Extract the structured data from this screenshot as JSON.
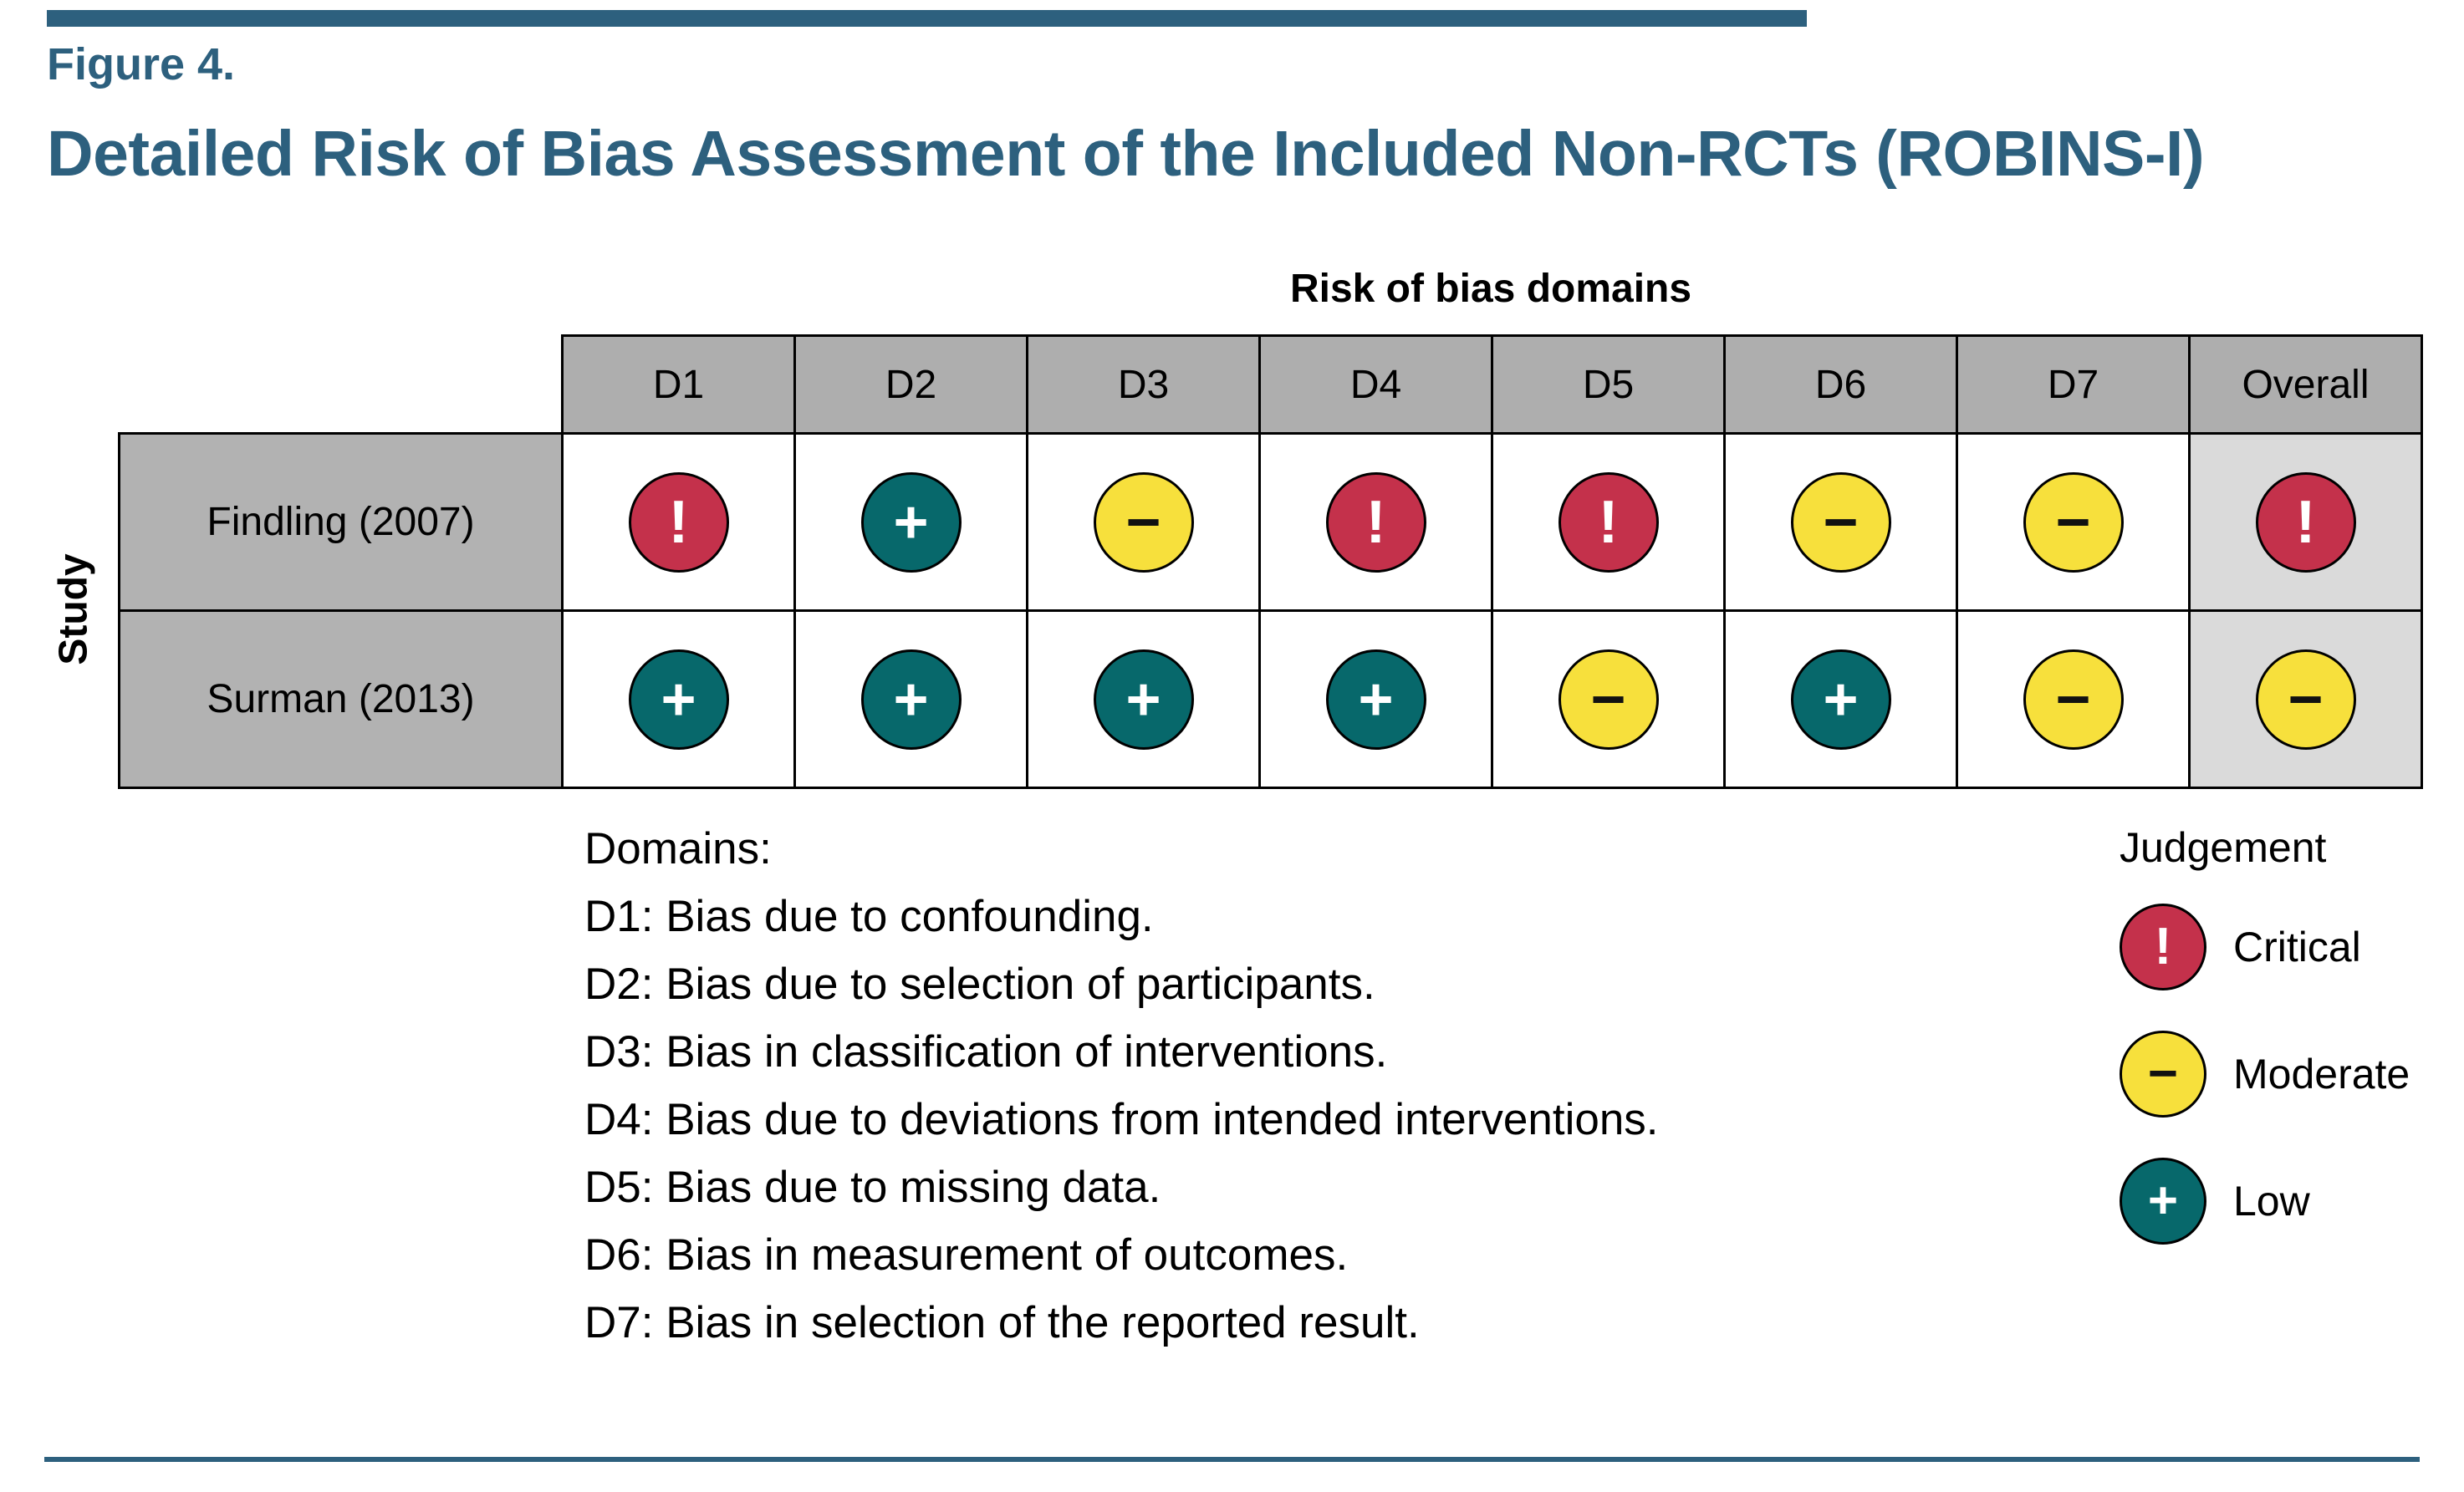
{
  "figure": {
    "label": "Figure 4.",
    "title": "Detailed Risk of Bias Assessment of the Included Non-RCTs (ROBINS-I)"
  },
  "chart_data": {
    "type": "heatmap",
    "title": "Risk of bias domains",
    "row_axis_label": "Study",
    "columns": [
      "D1",
      "D2",
      "D3",
      "D4",
      "D5",
      "D6",
      "D7",
      "Overall"
    ],
    "rows": [
      {
        "study": "Findling (2007)",
        "judgements": [
          "critical",
          "low",
          "moderate",
          "critical",
          "critical",
          "moderate",
          "moderate",
          "critical"
        ]
      },
      {
        "study": "Surman (2013)",
        "judgements": [
          "low",
          "low",
          "low",
          "low",
          "moderate",
          "low",
          "moderate",
          "moderate"
        ]
      }
    ],
    "judgement_styles": {
      "critical": {
        "symbol": "!",
        "fill": "#C4314B",
        "text": "#FFFFFF"
      },
      "moderate": {
        "symbol": "−",
        "fill": "#F7E03C",
        "text": "#111111"
      },
      "low": {
        "symbol": "+",
        "fill": "#07686B",
        "text": "#FFFFFF"
      }
    },
    "legend": {
      "title": "Judgement",
      "entries": [
        {
          "judgement": "critical",
          "label": "Critical"
        },
        {
          "judgement": "moderate",
          "label": "Moderate"
        },
        {
          "judgement": "low",
          "label": "Low"
        }
      ]
    }
  },
  "domains_note": {
    "heading": "Domains:",
    "items": [
      "D1: Bias due to confounding.",
      "D2: Bias due to selection of participants.",
      "D3: Bias in classification of interventions.",
      "D4: Bias due to deviations from intended interventions.",
      "D5: Bias due to missing data.",
      "D6: Bias in measurement of outcomes.",
      "D7: Bias in selection of the reported result."
    ]
  },
  "colors": {
    "accent": "#2D607E",
    "header_gray": "#AEAEAE",
    "study_gray": "#B2B2B2",
    "overall_gray": "#DADADA"
  }
}
